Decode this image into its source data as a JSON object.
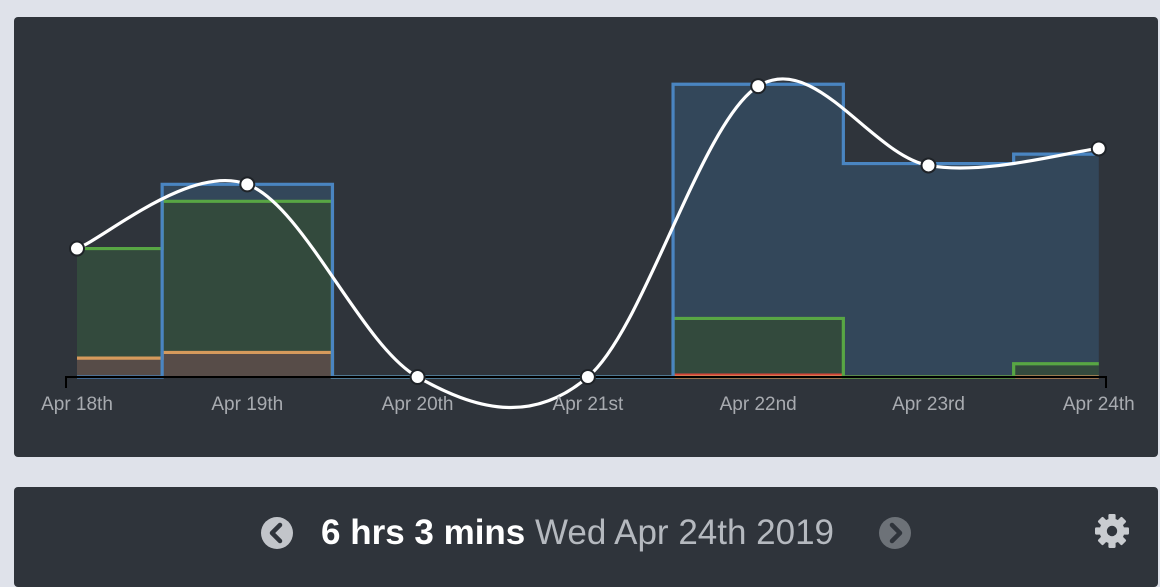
{
  "chart_data": {
    "type": "line",
    "categories": [
      "Apr 18th",
      "Apr 19th",
      "Apr 20th",
      "Apr 21st",
      "Apr 22nd",
      "Apr 23rd",
      "Apr 24th"
    ],
    "ylim": [
      0,
      9
    ],
    "total_line": [
      3.4,
      5.1,
      0,
      0,
      7.7,
      5.6,
      6.05
    ],
    "steps": [
      {
        "name": "",
        "color": "#4a85c1",
        "fill": "#33475a",
        "points": [
          [
            0,
            0
          ],
          [
            0.5,
            0
          ],
          [
            0.5,
            5.1
          ],
          [
            1.5,
            5.1
          ],
          [
            1.5,
            0
          ],
          [
            3.5,
            0
          ],
          [
            3.5,
            7.75
          ],
          [
            4.5,
            7.75
          ],
          [
            4.5,
            5.65
          ],
          [
            5.5,
            5.65
          ],
          [
            5.5,
            5.9
          ],
          [
            6,
            5.9
          ]
        ]
      },
      {
        "name": "",
        "color": "#58a644",
        "fill": "#334a3d",
        "points": [
          [
            0,
            3.4
          ],
          [
            0.5,
            3.4
          ],
          [
            0.5,
            4.65
          ],
          [
            1.5,
            4.65
          ],
          [
            1.5,
            0
          ],
          [
            3.5,
            0
          ],
          [
            3.5,
            1.55
          ],
          [
            4.5,
            1.55
          ],
          [
            4.5,
            0
          ],
          [
            5.5,
            0
          ],
          [
            5.5,
            0.35
          ],
          [
            6,
            0.35
          ]
        ]
      },
      {
        "name": "",
        "color": "#d69a5c",
        "fill": "#574c48",
        "points": [
          [
            0,
            0.5
          ],
          [
            0.5,
            0.5
          ],
          [
            0.5,
            0.65
          ],
          [
            1.5,
            0.65
          ],
          [
            1.5,
            0
          ],
          [
            6,
            0
          ]
        ]
      },
      {
        "name": "",
        "color": "#d4453a",
        "fill": "none",
        "points": [
          [
            3.5,
            0.05
          ],
          [
            4.5,
            0.05
          ]
        ]
      }
    ]
  },
  "footer": {
    "duration": "6 hrs 3 mins",
    "date": "Wed Apr 24th 2019"
  },
  "icons": {
    "prev": "chevron-left-circle-icon",
    "next": "chevron-right-circle-icon",
    "settings": "gear-icon"
  },
  "colors": {
    "panel": "#2f343b",
    "background": "#dfe2ea",
    "total_line": "#ffffff"
  }
}
